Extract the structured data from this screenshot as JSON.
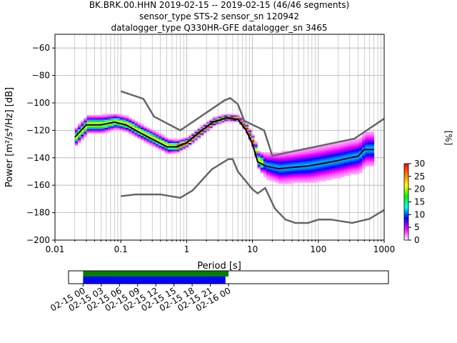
{
  "chart_data": {
    "type": "heatmap",
    "title_lines": [
      "BK.BRK.00.HHN   2019-02-15 -- 2019-02-15  (46/46 segments)",
      "sensor_type STS-2 sensor_sn 120942",
      "datalogger_type Q330HR-GFE datalogger_sn 3465"
    ],
    "xlabel": "Period [s]",
    "ylabel": "Power [m²/s⁴/Hz] [dB]",
    "xscale": "log",
    "xlim": [
      0.01,
      1000
    ],
    "ylim": [
      -200,
      -50
    ],
    "xticks": [
      0.01,
      0.1,
      1,
      10,
      100,
      1000
    ],
    "xtick_labels": [
      "0.01",
      "0.1",
      "1",
      "10",
      "100",
      "1000"
    ],
    "yticks": [
      -200,
      -180,
      -160,
      -140,
      -120,
      -100,
      -80,
      -60
    ],
    "ytick_labels": [
      "−200",
      "−180",
      "−160",
      "−140",
      "−120",
      "−100",
      "−80",
      "−60"
    ],
    "grid": true,
    "colorbar": {
      "label": "[%]",
      "min": 0,
      "max": 30,
      "ticks": [
        "0",
        "5",
        "10",
        "15",
        "20",
        "25",
        "30"
      ],
      "colors": [
        "#ffffff",
        "#ff00ff",
        "#0000ff",
        "#00ffff",
        "#00ff00",
        "#ffff00",
        "#ff8000",
        "#ff0000"
      ]
    },
    "mean": {
      "period": [
        0.02,
        0.03,
        0.05,
        0.08,
        0.12,
        0.2,
        0.35,
        0.5,
        0.7,
        1,
        1.5,
        2.5,
        4,
        6,
        8,
        10,
        12,
        16,
        25,
        40,
        70,
        120,
        200,
        300,
        400,
        500,
        700
      ],
      "db": [
        -125,
        -116,
        -116,
        -114,
        -116,
        -122,
        -128,
        -132,
        -132,
        -129,
        -122,
        -114,
        -111,
        -112,
        -120,
        -130,
        -143,
        -146,
        -148,
        -147,
        -146,
        -144,
        -142,
        -140,
        -139,
        -134,
        -134
      ]
    },
    "pdf_spread_db": [
      6,
      6,
      6,
      5,
      5,
      5,
      5,
      5,
      4,
      3,
      3,
      2.5,
      2,
      2,
      3,
      4,
      6,
      9,
      11,
      11,
      12,
      12,
      12,
      12,
      12,
      12,
      12
    ],
    "nhnm": {
      "period": [
        0.1,
        0.22,
        0.32,
        0.8,
        3.8,
        4.6,
        6,
        7.5,
        15,
        20,
        354,
        1000
      ],
      "db": [
        -91.5,
        -97,
        -110,
        -120,
        -98,
        -96.5,
        -101,
        -113,
        -120,
        -138.5,
        -126,
        -111.5
      ]
    },
    "nlnm": {
      "period": [
        0.1,
        0.17,
        0.4,
        0.8,
        1.24,
        2.4,
        4.3,
        5,
        6,
        10,
        12,
        15.6,
        21.9,
        31.6,
        45,
        70,
        101,
        154,
        328,
        600,
        1000
      ],
      "db": [
        -168,
        -166.7,
        -166.7,
        -169.2,
        -163.7,
        -148.5,
        -141,
        -141,
        -150,
        -163,
        -166,
        -162,
        -177,
        -185,
        -187.5,
        -187.5,
        -185,
        -185,
        -187.5,
        -184.5,
        -178
      ]
    },
    "timeline": {
      "tick_labels": [
        "02-15 00",
        "02-15 03",
        "02-15 06",
        "02-15 09",
        "02-15 12",
        "02-15 15",
        "02-15 18",
        "02-15 21",
        "02-16 00"
      ],
      "range_hours": [
        -2.4,
        50.4
      ],
      "green_bar_hours": [
        0,
        24
      ],
      "blue_bar_hours": [
        0,
        23.5
      ],
      "green": "#008000",
      "blue": "#0000ff"
    }
  }
}
